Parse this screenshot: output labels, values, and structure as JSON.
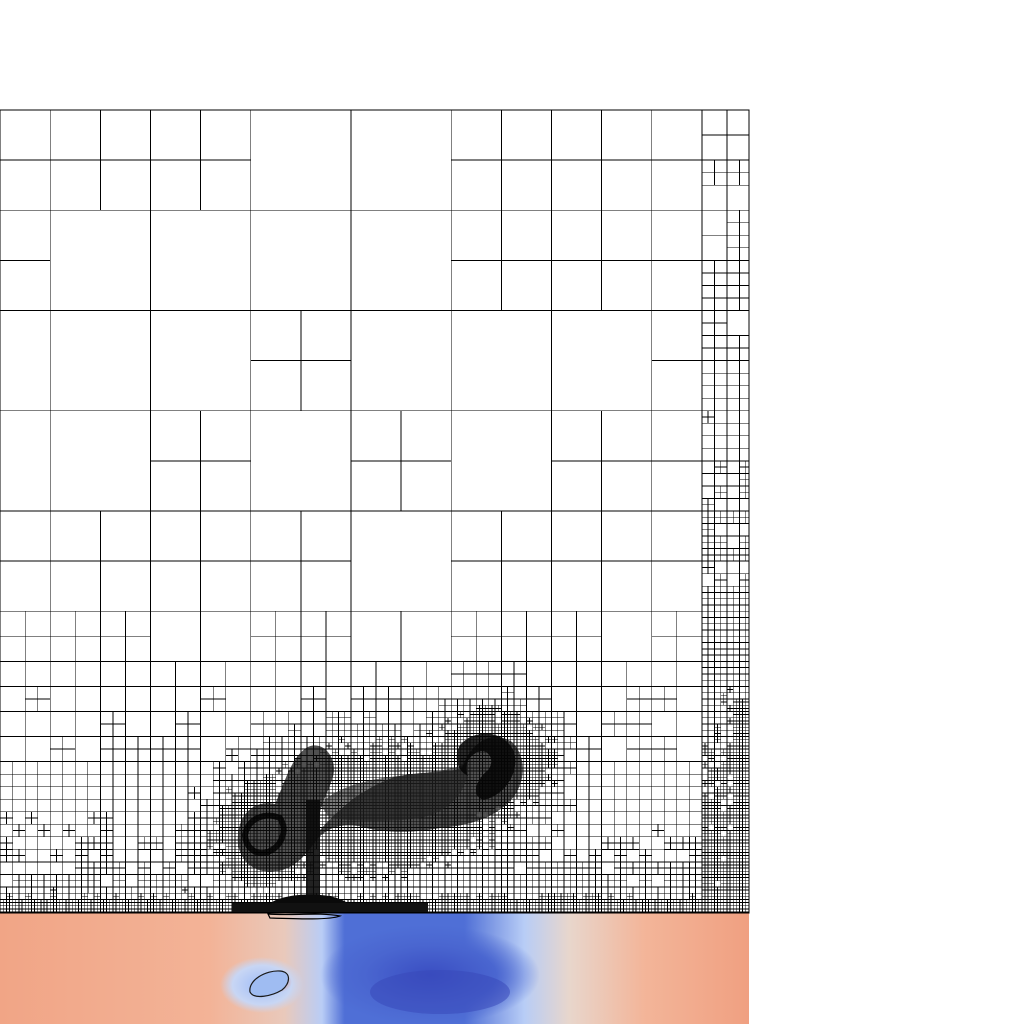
{
  "visualization": {
    "mesh_line_color": "#000000",
    "background_color": "#ffffff",
    "colormap": [
      "#3b4cc0",
      "#8db0fe",
      "#dddcdc",
      "#f4a384",
      "#e7745b"
    ],
    "panels": [
      "adaptive-quadtree-mesh",
      "scalar-field-colormap"
    ]
  }
}
